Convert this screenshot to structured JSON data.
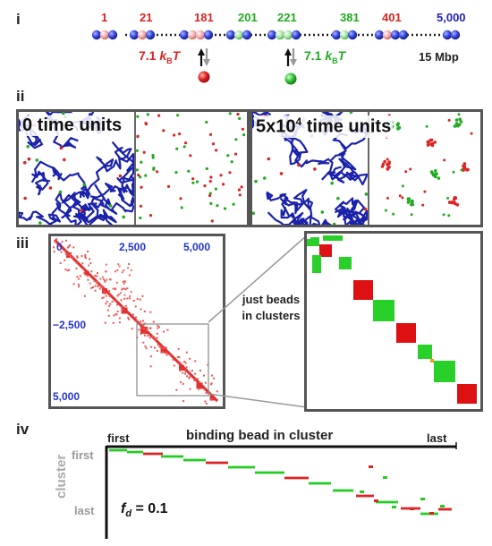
{
  "panels": {
    "i": "i",
    "ii": "ii",
    "iii": "iii",
    "iv": "iv"
  },
  "panel_i": {
    "bead_labels": [
      {
        "text": "1",
        "color": "#dd2222"
      },
      {
        "text": "21",
        "color": "#dd2222"
      },
      {
        "text": "181",
        "color": "#dd2222"
      },
      {
        "text": "201",
        "color": "#22aa22"
      },
      {
        "text": "221",
        "color": "#22aa22"
      },
      {
        "text": "381",
        "color": "#22aa22"
      },
      {
        "text": "401",
        "color": "#dd2222"
      },
      {
        "text": "5,000",
        "color": "#2222bb"
      }
    ],
    "energy_red": "7.1",
    "energy_green": "7.1",
    "kbt_k": "k",
    "kbt_b": "B",
    "kbt_t": "T",
    "length_label": "15 Mbp"
  },
  "panel_ii": {
    "label_start": "0 time units",
    "label_end_prefix": "5x10",
    "label_end_exp": "4",
    "label_end_suffix": " time units"
  },
  "panel_iii": {
    "axis_top_0": "0",
    "axis_top_2500": "2,500",
    "axis_top_5000": "5,000",
    "axis_left_2500": "−2,500",
    "axis_left_5000": "5,000",
    "note": "just beads in clusters"
  },
  "panel_iv": {
    "title": "binding bead in cluster",
    "x_first": "first",
    "x_last": "last",
    "y_axis": "cluster",
    "y_first": "first",
    "y_last": "last",
    "fd_symbol": "f",
    "fd_sub": "d",
    "fd_value": " = 0.1"
  },
  "colors": {
    "red": "#dd2222",
    "green": "#22aa22",
    "blue": "#2222bb",
    "pink": "#f4a5a5",
    "lightgreen": "#a8e6a8"
  }
}
